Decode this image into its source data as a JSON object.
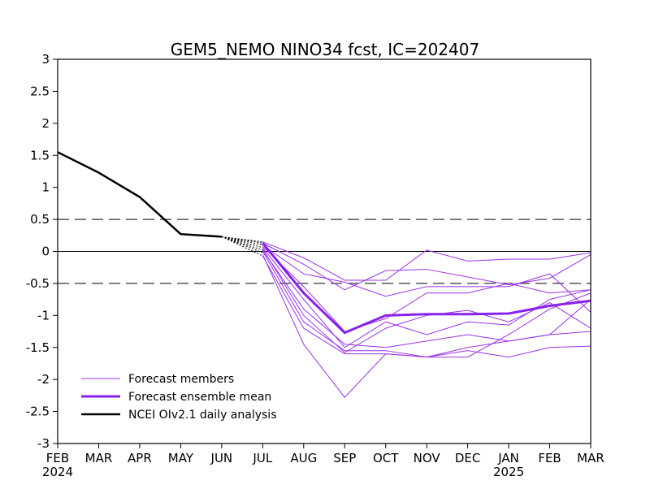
{
  "chart_data": {
    "type": "line",
    "title": "GEM5_NEMO NINO34 fcst, IC=202407",
    "xlabel": "",
    "ylabel": "",
    "ylim": [
      -3,
      3
    ],
    "yticks": [
      "3",
      "2.5",
      "2",
      "1.5",
      "1",
      "0.5",
      "0",
      "-0.5",
      "-1",
      "-1.5",
      "-2",
      "-2.5",
      "-3"
    ],
    "categories": [
      "FEB",
      "MAR",
      "APR",
      "MAY",
      "JUN",
      "JUL",
      "AUG",
      "SEP",
      "OCT",
      "NOV",
      "DEC",
      "JAN",
      "FEB",
      "MAR"
    ],
    "year_labels": [
      {
        "index": 0,
        "label": "2024"
      },
      {
        "index": 11,
        "label": "2025"
      }
    ],
    "reference_lines": [
      0.5,
      0,
      -0.5
    ],
    "analysis": {
      "name": "NCEI OIv2.1 daily analysis",
      "color": "#000000",
      "x": [
        0,
        1,
        2,
        3,
        4
      ],
      "y": [
        1.55,
        1.23,
        0.85,
        0.27,
        0.23
      ]
    },
    "bridges": {
      "from": [
        4,
        0.23
      ],
      "to_x": 5,
      "to_y": [
        0.15,
        0.13,
        0.1,
        0.06,
        0.02,
        -0.02,
        -0.07
      ]
    },
    "members": {
      "name": "Forecast members",
      "color": "#9933ee",
      "x": [
        5,
        6,
        7,
        8,
        9,
        10,
        11,
        12,
        13
      ],
      "series": [
        {
          "values": [
            0.15,
            -0.1,
            -0.45,
            -0.45,
            0.02,
            -0.15,
            -0.12,
            -0.12,
            -0.02
          ]
        },
        {
          "values": [
            0.13,
            -0.2,
            -0.6,
            -0.3,
            -0.28,
            -0.4,
            -0.52,
            -0.42,
            -0.05
          ]
        },
        {
          "values": [
            0.1,
            -0.35,
            -0.48,
            -0.7,
            -0.55,
            -0.55,
            -0.55,
            -0.35,
            -0.95
          ]
        },
        {
          "values": [
            0.08,
            -0.55,
            -1.25,
            -1.05,
            -0.65,
            -0.65,
            -0.5,
            -0.65,
            -0.6
          ]
        },
        {
          "values": [
            0.06,
            -0.75,
            -1.5,
            -1.1,
            -1.3,
            -1.1,
            -1.15,
            -0.75,
            -0.6
          ]
        },
        {
          "values": [
            0.04,
            -1.0,
            -1.58,
            -1.2,
            -1.0,
            -0.92,
            -1.1,
            -0.8,
            -1.2
          ]
        },
        {
          "values": [
            0.02,
            -0.9,
            -1.45,
            -1.5,
            -1.4,
            -1.3,
            -1.4,
            -1.3,
            -0.75
          ]
        },
        {
          "values": [
            0.0,
            -1.1,
            -1.55,
            -1.55,
            -1.65,
            -1.5,
            -1.4,
            -1.3,
            -1.25
          ]
        },
        {
          "values": [
            -0.05,
            -1.45,
            -2.28,
            -1.6,
            -1.65,
            -1.65,
            -1.3,
            -0.9,
            -0.65
          ]
        },
        {
          "values": [
            -0.07,
            -1.2,
            -1.6,
            -1.6,
            -1.65,
            -1.55,
            -1.65,
            -1.5,
            -1.48
          ]
        }
      ]
    },
    "mean": {
      "name": "Forecast ensemble mean",
      "color": "#8822ee",
      "x": [
        5,
        6,
        7,
        8,
        9,
        10,
        11,
        12,
        13
      ],
      "values": [
        0.13,
        -0.65,
        -1.27,
        -1.0,
        -0.98,
        -0.98,
        -0.97,
        -0.85,
        -0.77
      ]
    },
    "legend": {
      "placement": "bottom-left",
      "entries": [
        {
          "label": "Forecast members",
          "style": "member"
        },
        {
          "label": "Forecast ensemble mean",
          "style": "mean"
        },
        {
          "label": "NCEI OIv2.1 daily analysis",
          "style": "analysis"
        }
      ]
    }
  }
}
